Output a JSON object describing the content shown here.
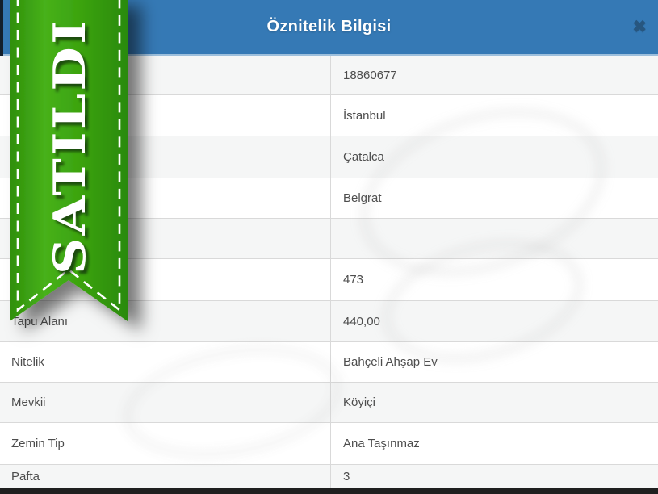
{
  "dialog": {
    "title": "Öznitelik Bilgisi",
    "close_icon": "✖"
  },
  "ribbon": {
    "text": "SATILDI"
  },
  "table": {
    "rows": [
      {
        "label": "",
        "value": "18860677"
      },
      {
        "label": "",
        "value": "İstanbul"
      },
      {
        "label": "",
        "value": "Çatalca"
      },
      {
        "label": "",
        "value": "Belgrat"
      },
      {
        "label": "",
        "value": ""
      },
      {
        "label": "",
        "value": "473"
      },
      {
        "label": "Tapu Alanı",
        "value": "440,00"
      },
      {
        "label": "Nitelik",
        "value": "Bahçeli Ahşap Ev"
      },
      {
        "label": "Mevkii",
        "value": "Köyiçi"
      },
      {
        "label": "Zemin Tip",
        "value": "Ana Taşınmaz"
      },
      {
        "label": "Pafta",
        "value": "3"
      }
    ]
  },
  "colors": {
    "header_blue": "#3579b5",
    "ribbon_green": "#3aa00f",
    "row_alt_bg": "#f5f6f6",
    "row_border": "#d9d9d9",
    "cell_text": "#4d4d4d",
    "bottom_bar": "#1f1f1f"
  }
}
